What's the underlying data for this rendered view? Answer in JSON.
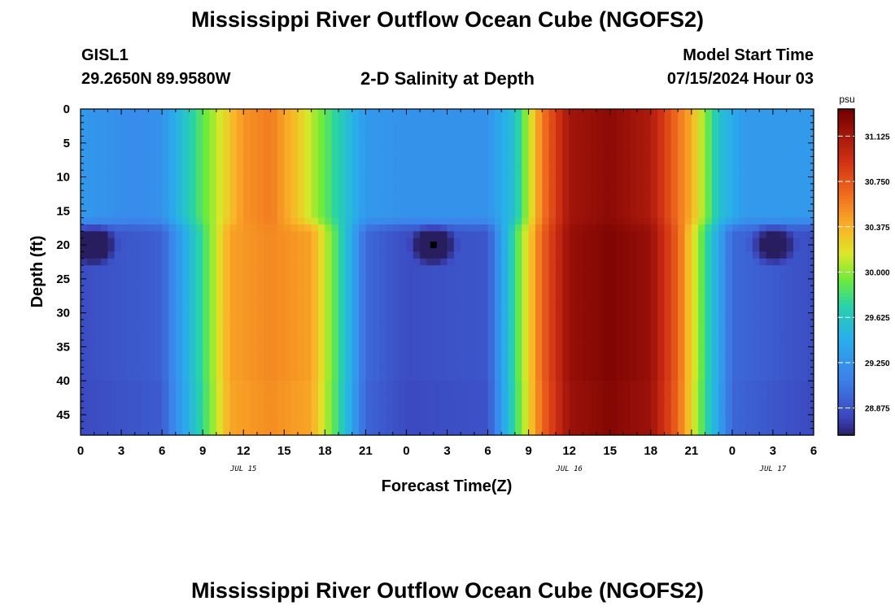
{
  "page": {
    "title": "Mississippi River Outflow Ocean Cube (NGOFS2)",
    "title_repeat": "Mississippi River Outflow Ocean Cube (NGOFS2)",
    "station_id": "GISL1",
    "station_coords": "29.2650N  89.9580W",
    "plot_subtitle": "2-D Salinity at Depth",
    "model_start_label": "Model Start Time",
    "model_start_value": "07/15/2024 Hour 03"
  },
  "chart_data": {
    "type": "heatmap",
    "title": "2-D Salinity at Depth",
    "xlabel": "Forecast Time(Z)",
    "ylabel": "Depth (ft)",
    "x_range_hours": [
      0,
      54
    ],
    "x_tick_labels": [
      "0",
      "3",
      "6",
      "9",
      "12",
      "15",
      "18",
      "21",
      "0",
      "3",
      "6",
      "9",
      "12",
      "15",
      "18",
      "21",
      "0",
      "3",
      "6"
    ],
    "date_labels": [
      {
        "label": "JUL 15",
        "hour": 12
      },
      {
        "label": "JUL 16",
        "hour": 36
      },
      {
        "label": "JUL 17",
        "hour": 51
      }
    ],
    "y_range": [
      0,
      48
    ],
    "y_ticks": [
      0,
      5,
      10,
      15,
      20,
      25,
      30,
      35,
      40,
      45
    ],
    "colorbar": {
      "unit": "psu",
      "min": 28.65,
      "max": 31.35,
      "ticks": [
        "31.125",
        "30.750",
        "30.375",
        "30.000",
        "29.625",
        "29.250",
        "28.875"
      ],
      "tick_values": [
        31.125,
        30.75,
        30.375,
        30.0,
        29.625,
        29.25,
        28.875
      ]
    },
    "surface_salinity_by_hour": [
      {
        "hour": 0,
        "value": 29.3
      },
      {
        "hour": 4,
        "value": 29.2
      },
      {
        "hour": 6,
        "value": 29.25
      },
      {
        "hour": 9,
        "value": 29.9
      },
      {
        "hour": 12,
        "value": 30.5
      },
      {
        "hour": 14,
        "value": 30.6
      },
      {
        "hour": 16,
        "value": 30.3
      },
      {
        "hour": 19,
        "value": 29.7
      },
      {
        "hour": 21,
        "value": 29.3
      },
      {
        "hour": 24,
        "value": 29.25
      },
      {
        "hour": 30,
        "value": 29.25
      },
      {
        "hour": 32,
        "value": 29.6
      },
      {
        "hour": 34,
        "value": 30.6
      },
      {
        "hour": 36,
        "value": 31.15
      },
      {
        "hour": 39,
        "value": 31.25
      },
      {
        "hour": 42,
        "value": 31.1
      },
      {
        "hour": 45,
        "value": 30.4
      },
      {
        "hour": 47,
        "value": 29.6
      },
      {
        "hour": 49,
        "value": 29.3
      },
      {
        "hour": 54,
        "value": 29.3
      }
    ],
    "deep_salinity_by_hour": [
      {
        "hour": 0,
        "value": 28.85
      },
      {
        "hour": 6,
        "value": 28.95
      },
      {
        "hour": 9,
        "value": 29.8
      },
      {
        "hour": 11,
        "value": 30.45
      },
      {
        "hour": 14,
        "value": 30.55
      },
      {
        "hour": 17,
        "value": 30.45
      },
      {
        "hour": 19,
        "value": 29.8
      },
      {
        "hour": 21,
        "value": 29.0
      },
      {
        "hour": 24,
        "value": 28.85
      },
      {
        "hour": 30,
        "value": 28.9
      },
      {
        "hour": 32,
        "value": 29.8
      },
      {
        "hour": 34,
        "value": 30.7
      },
      {
        "hour": 36,
        "value": 31.2
      },
      {
        "hour": 39,
        "value": 31.3
      },
      {
        "hour": 42,
        "value": 31.2
      },
      {
        "hour": 44,
        "value": 30.7
      },
      {
        "hour": 46,
        "value": 29.8
      },
      {
        "hour": 48,
        "value": 29.0
      },
      {
        "hour": 54,
        "value": 28.85
      }
    ],
    "halocline_depth_ft": 17,
    "low_salinity_spots": [
      {
        "hour": 1,
        "depth_ft": 20
      },
      {
        "hour": 26,
        "depth_ft": 20
      },
      {
        "hour": 51,
        "depth_ft": 20
      }
    ]
  }
}
